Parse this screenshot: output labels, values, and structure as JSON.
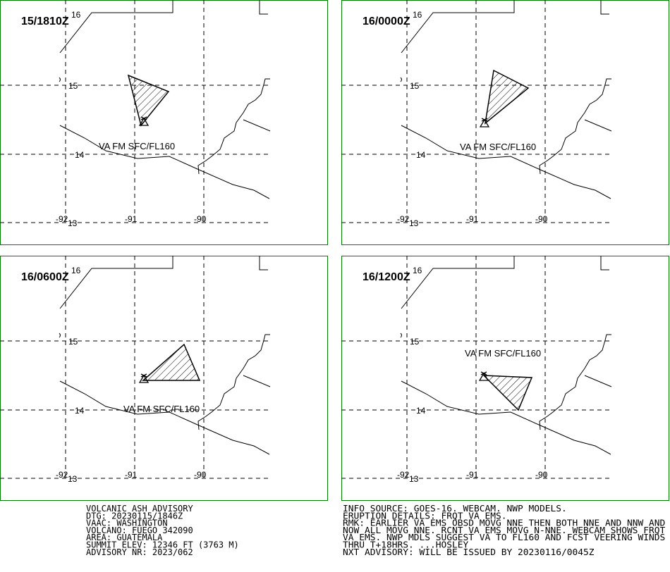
{
  "panels": [
    {
      "time": "15/1810Z",
      "ash_label": "VA FM SFC/FL160"
    },
    {
      "time": "16/0000Z",
      "ash_label": "VA FM SFC/FL160"
    },
    {
      "time": "16/0600Z",
      "ash_label": "VA FM SFC/FL160"
    },
    {
      "time": "16/1200Z",
      "ash_label": "VA FM SFC/FL160"
    }
  ],
  "grid_labels": {
    "lat": [
      "16",
      "15",
      "14",
      "13"
    ],
    "lon": [
      "-92",
      "-91",
      "-90"
    ]
  },
  "advisory_left": [
    "VOLCANIC ASH ADVISORY",
    "DTG: 20230115/1846Z",
    "VAAC: WASHINGTON",
    "VOLCANO: FUEGO 342090",
    "AREA: GUATEMALA",
    "SUMMIT ELEV: 12346 FT (3763 M)",
    "ADVISORY NR: 2023/062"
  ],
  "advisory_right": [
    "INFO SOURCE: GOES-16. WEBCAM. NWP MODELS.",
    "ERUPTION DETAILS: FRQT VA EMS.",
    "RMK: EARLIER VA EMS OBSD MOVG NNE THEN BOTH NNE AND NNW AND",
    "NOW ALL MOVG NNE. RCNT VA EMS MOVG N-NNE. WEBCAM SHOWS FRQT",
    "VA EMS. NWP MDLS SUGGEST VA TO FL160 AND FCST VEERING WINDS",
    "THRU T+18HRS. ...HOSLEY",
    "NXT ADVISORY: WILL BE ISSUED BY 20230116/0045Z"
  ]
}
